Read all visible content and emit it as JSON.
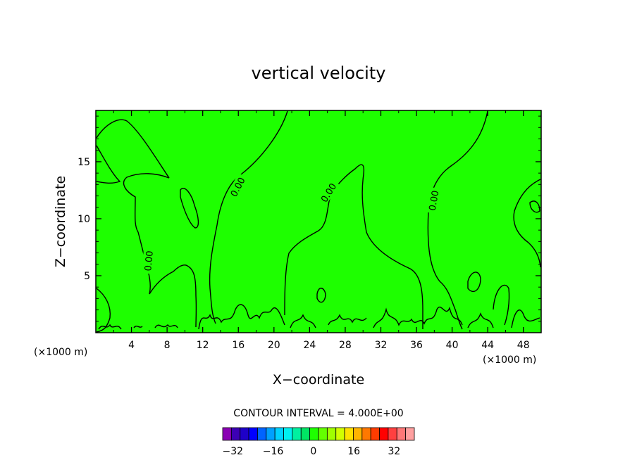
{
  "chart_data": {
    "type": "contour",
    "title": "vertical velocity",
    "xlabel": "X−coordinate",
    "ylabel": "Z−coordinate",
    "x_unit_left": "(×1000 m)",
    "x_unit_right": "(×1000 m)",
    "xlim": [
      0,
      50
    ],
    "ylim": [
      0,
      19.5
    ],
    "x_ticks": [
      4,
      8,
      12,
      16,
      20,
      24,
      28,
      32,
      36,
      40,
      44,
      48
    ],
    "y_ticks": [
      5,
      10,
      15
    ],
    "field_fill_color": "#1eff00",
    "contour_color": "#000000",
    "contour_labels": [
      {
        "text": "0.00",
        "x": 5.9,
        "y": 6.3,
        "angle": -85
      },
      {
        "text": "0.00",
        "x": 15.9,
        "y": 12.8,
        "angle": -62
      },
      {
        "text": "0.00",
        "x": 26.1,
        "y": 12.3,
        "angle": -58
      },
      {
        "text": "0.00",
        "x": 37.9,
        "y": 11.6,
        "angle": -80
      }
    ],
    "contour_interval_text": "CONTOUR INTERVAL = 4.000E+00",
    "colorbar": {
      "colors": [
        "#8a00b4",
        "#3c00b4",
        "#1e00c8",
        "#0000ff",
        "#0064ff",
        "#00a0ff",
        "#00d2ff",
        "#00f0f0",
        "#00f0a0",
        "#00e664",
        "#1eff00",
        "#64ff00",
        "#a0ff00",
        "#d2ff00",
        "#ffe100",
        "#ffb400",
        "#ff7800",
        "#ff3c00",
        "#ff0000",
        "#ff4040",
        "#ff7878",
        "#ffa0a0"
      ],
      "tick_labels": [
        "−32",
        "−16",
        "0",
        "16",
        "32"
      ],
      "tick_values": [
        -32,
        -16,
        0,
        16,
        32
      ],
      "vmin": -36,
      "vmax": 40
    }
  }
}
